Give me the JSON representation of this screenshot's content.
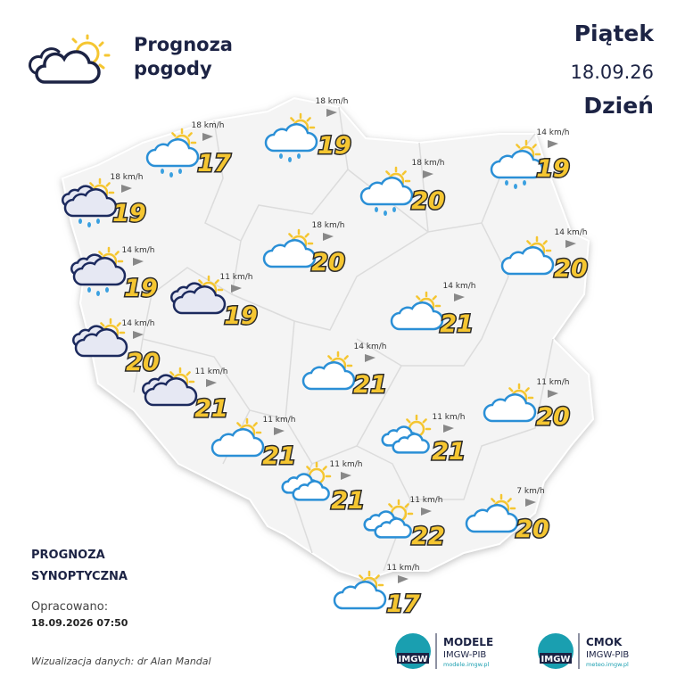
{
  "header": {
    "title_line1": "Prognoza",
    "title_line2": "pogody",
    "day": "Piątek",
    "date": "18.09.26",
    "period": "Dzień"
  },
  "stations": [
    {
      "temp": 17,
      "wind": "18 km/h"
    },
    {
      "temp": 19,
      "wind": "18 km/h"
    },
    {
      "temp": 20,
      "wind": "18 km/h"
    },
    {
      "temp": 19,
      "wind": "14 km/h"
    },
    {
      "temp": 19,
      "wind": "18 km/h"
    },
    {
      "temp": 20,
      "wind": "18 km/h"
    },
    {
      "temp": 20,
      "wind": "14 km/h"
    },
    {
      "temp": 19,
      "wind": "14 km/h"
    },
    {
      "temp": 19,
      "wind": "11 km/h"
    },
    {
      "temp": 21,
      "wind": "14 km/h"
    },
    {
      "temp": 20,
      "wind": "14 km/h"
    },
    {
      "temp": 21,
      "wind": "14 km/h"
    },
    {
      "temp": 21,
      "wind": "11 km/h"
    },
    {
      "temp": 20,
      "wind": "11 km/h"
    },
    {
      "temp": 21,
      "wind": "11 km/h"
    },
    {
      "temp": 21,
      "wind": "11 km/h"
    },
    {
      "temp": 21,
      "wind": "11 km/h"
    },
    {
      "temp": 22,
      "wind": "11 km/h"
    },
    {
      "temp": 20,
      "wind": "7 km/h"
    },
    {
      "temp": 17,
      "wind": "11 km/h"
    }
  ],
  "footer": {
    "label_line1": "PROGNOZA",
    "label_line2": "SYNOPTYCZNA",
    "prepared_label": "Opracowano:",
    "prepared_time": "18.09.2026 07:50",
    "credit": "Wizualizacja danych: dr Alan Mandal",
    "logos": [
      {
        "badge": "IMGW",
        "name": "MODELE",
        "org": "IMGW-PIB",
        "url": "modele.imgw.pl"
      },
      {
        "badge": "IMGW",
        "name": "CMOK",
        "org": "IMGW-PIB",
        "url": "meteo.imgw.pl"
      }
    ]
  }
}
